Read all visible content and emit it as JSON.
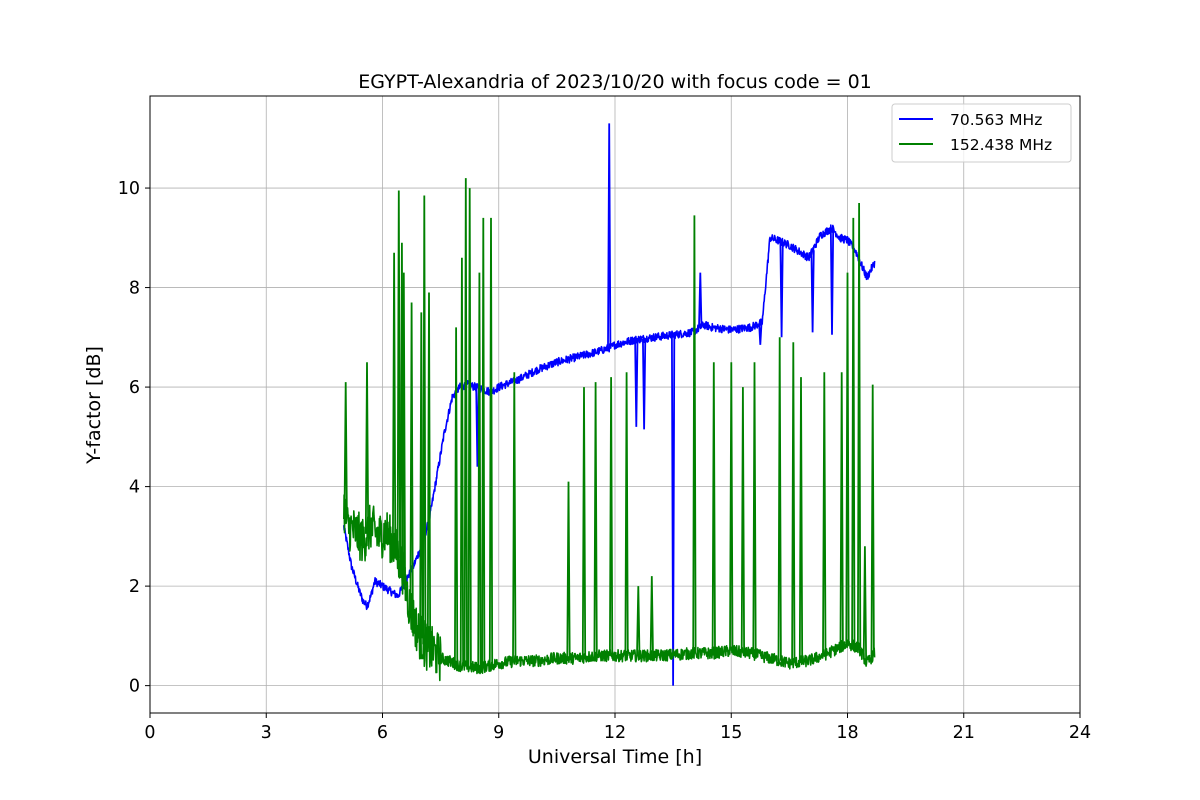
{
  "chart_data": {
    "type": "line",
    "title": "EGYPT-Alexandria of 2023/10/20 with focus code = 01",
    "xlabel": "Universal Time [h]",
    "ylabel": "Y-factor [dB]",
    "xlim": [
      0,
      24
    ],
    "ylim": [
      -0.55,
      11.85
    ],
    "xticks": [
      0,
      3,
      6,
      9,
      12,
      15,
      18,
      21,
      24
    ],
    "yticks": [
      0,
      2,
      4,
      6,
      8,
      10
    ],
    "grid": true,
    "legend_position": "top-right",
    "series": [
      {
        "name": "  70.563 MHz",
        "color": "#0000ff",
        "x": [
          5.0,
          5.2,
          5.4,
          5.5,
          5.6,
          5.7,
          5.8,
          6.0,
          6.2,
          6.4,
          6.6,
          6.8,
          7.0,
          7.2,
          7.4,
          7.6,
          7.8,
          8.0,
          8.2,
          8.4,
          8.6,
          8.8,
          9.0,
          9.5,
          10.0,
          10.5,
          11.0,
          11.5,
          11.9,
          12.0,
          12.5,
          13.0,
          13.5,
          14.0,
          14.3,
          14.5,
          15.0,
          15.5,
          15.8,
          16.0,
          16.2,
          16.5,
          16.8,
          17.0,
          17.3,
          17.6,
          17.8,
          18.0,
          18.2,
          18.5,
          18.7
        ],
        "y": [
          3.2,
          2.4,
          1.9,
          1.7,
          1.6,
          1.8,
          2.1,
          2.0,
          1.9,
          1.8,
          2.1,
          2.4,
          2.8,
          3.3,
          4.2,
          5.1,
          5.8,
          6.0,
          6.05,
          6.0,
          5.95,
          5.9,
          6.0,
          6.15,
          6.35,
          6.5,
          6.6,
          6.7,
          6.8,
          6.85,
          6.95,
          7.0,
          7.05,
          7.1,
          7.25,
          7.2,
          7.15,
          7.2,
          7.3,
          9.0,
          8.95,
          8.85,
          8.7,
          8.6,
          9.05,
          9.2,
          9.0,
          8.95,
          8.75,
          8.2,
          8.5
        ],
        "spikes": [
          {
            "x": 11.85,
            "y": 11.3
          },
          {
            "x": 14.2,
            "y": 8.3
          },
          {
            "x": 8.45,
            "y": 4.4
          },
          {
            "x": 12.55,
            "y": 5.2
          },
          {
            "x": 12.75,
            "y": 5.15
          },
          {
            "x": 13.5,
            "y": 0.0
          },
          {
            "x": 15.75,
            "y": 6.85
          },
          {
            "x": 16.3,
            "y": 7.0
          },
          {
            "x": 17.1,
            "y": 7.1
          },
          {
            "x": 17.6,
            "y": 7.05
          }
        ]
      },
      {
        "name": "152.438 MHz",
        "color": "#008000",
        "x": [
          5.0,
          5.1,
          5.3,
          5.5,
          5.7,
          5.9,
          6.1,
          6.3,
          6.5,
          6.7,
          6.9,
          7.1,
          7.3,
          7.5,
          7.7,
          8.0,
          8.5,
          9.0,
          9.5,
          10.0,
          10.5,
          11.0,
          11.5,
          12.0,
          12.5,
          13.0,
          13.5,
          14.0,
          14.5,
          15.0,
          15.5,
          16.0,
          16.5,
          17.0,
          17.5,
          18.0,
          18.3,
          18.5,
          18.7
        ],
        "y": [
          3.6,
          3.2,
          3.1,
          2.9,
          3.2,
          3.0,
          3.1,
          2.8,
          2.4,
          1.6,
          1.1,
          0.8,
          0.7,
          0.55,
          0.5,
          0.4,
          0.35,
          0.45,
          0.5,
          0.5,
          0.55,
          0.55,
          0.6,
          0.6,
          0.6,
          0.6,
          0.62,
          0.65,
          0.65,
          0.7,
          0.65,
          0.55,
          0.45,
          0.5,
          0.65,
          0.85,
          0.75,
          0.45,
          0.65
        ],
        "spikes": [
          {
            "x": 5.05,
            "y": 6.1
          },
          {
            "x": 5.6,
            "y": 6.5
          },
          {
            "x": 6.3,
            "y": 8.7
          },
          {
            "x": 6.42,
            "y": 9.95
          },
          {
            "x": 6.5,
            "y": 8.9
          },
          {
            "x": 6.55,
            "y": 8.3
          },
          {
            "x": 6.75,
            "y": 7.7
          },
          {
            "x": 7.0,
            "y": 7.5
          },
          {
            "x": 7.08,
            "y": 9.85
          },
          {
            "x": 7.2,
            "y": 7.9
          },
          {
            "x": 7.9,
            "y": 7.2
          },
          {
            "x": 8.05,
            "y": 8.6
          },
          {
            "x": 8.15,
            "y": 10.2
          },
          {
            "x": 8.25,
            "y": 10.0
          },
          {
            "x": 8.5,
            "y": 8.3
          },
          {
            "x": 8.6,
            "y": 9.4
          },
          {
            "x": 8.8,
            "y": 9.4
          },
          {
            "x": 9.4,
            "y": 6.3
          },
          {
            "x": 10.8,
            "y": 4.1
          },
          {
            "x": 11.2,
            "y": 6.0
          },
          {
            "x": 11.5,
            "y": 6.1
          },
          {
            "x": 11.9,
            "y": 6.2
          },
          {
            "x": 12.3,
            "y": 6.3
          },
          {
            "x": 12.6,
            "y": 2.0
          },
          {
            "x": 12.95,
            "y": 2.2
          },
          {
            "x": 14.05,
            "y": 9.45
          },
          {
            "x": 14.55,
            "y": 6.5
          },
          {
            "x": 15.0,
            "y": 6.5
          },
          {
            "x": 15.3,
            "y": 6.0
          },
          {
            "x": 15.6,
            "y": 6.5
          },
          {
            "x": 16.25,
            "y": 7.0
          },
          {
            "x": 16.6,
            "y": 6.9
          },
          {
            "x": 16.8,
            "y": 6.2
          },
          {
            "x": 17.4,
            "y": 6.3
          },
          {
            "x": 17.85,
            "y": 6.3
          },
          {
            "x": 18.0,
            "y": 8.3
          },
          {
            "x": 18.15,
            "y": 9.4
          },
          {
            "x": 18.3,
            "y": 9.7
          },
          {
            "x": 18.45,
            "y": 2.8
          },
          {
            "x": 18.65,
            "y": 6.05
          }
        ]
      }
    ]
  }
}
